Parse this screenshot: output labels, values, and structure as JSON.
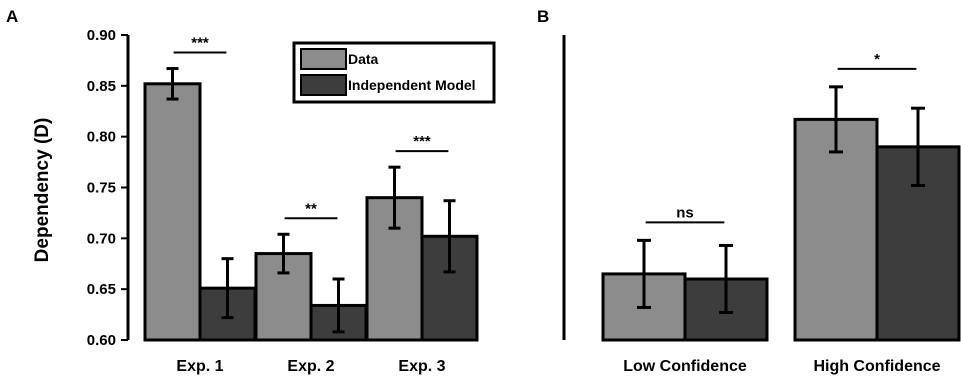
{
  "colors": {
    "data": "#8c8c8c",
    "model": "#3d3d3d",
    "axis": "#000000"
  },
  "chart_data": [
    {
      "panel": "A",
      "type": "bar",
      "ylabel": "Dependency (D)",
      "ylim": [
        0.6,
        0.9
      ],
      "yticks": [
        "0.60",
        "0.65",
        "0.70",
        "0.75",
        "0.80",
        "0.85",
        "0.90"
      ],
      "categories": [
        "Exp. 1",
        "Exp. 2",
        "Exp. 3"
      ],
      "series": [
        {
          "name": "Data",
          "values": [
            0.852,
            0.685,
            0.74
          ],
          "errors": [
            0.015,
            0.019,
            0.03
          ]
        },
        {
          "name": "Independent Model",
          "values": [
            0.651,
            0.634,
            0.702
          ],
          "errors": [
            0.029,
            0.026,
            0.035
          ]
        }
      ],
      "significance": [
        "***",
        "**",
        "***"
      ],
      "legend": "top-right",
      "grid": false
    },
    {
      "panel": "B",
      "type": "bar",
      "ylim": [
        0.6,
        0.9
      ],
      "categories": [
        "Low Confidence",
        "High Confidence"
      ],
      "series": [
        {
          "name": "Data",
          "values": [
            0.665,
            0.817
          ],
          "errors": [
            0.033,
            0.032
          ]
        },
        {
          "name": "Independent Model",
          "values": [
            0.66,
            0.79
          ],
          "errors": [
            0.033,
            0.038
          ]
        }
      ],
      "significance": [
        "ns",
        "*"
      ],
      "grid": false
    }
  ]
}
